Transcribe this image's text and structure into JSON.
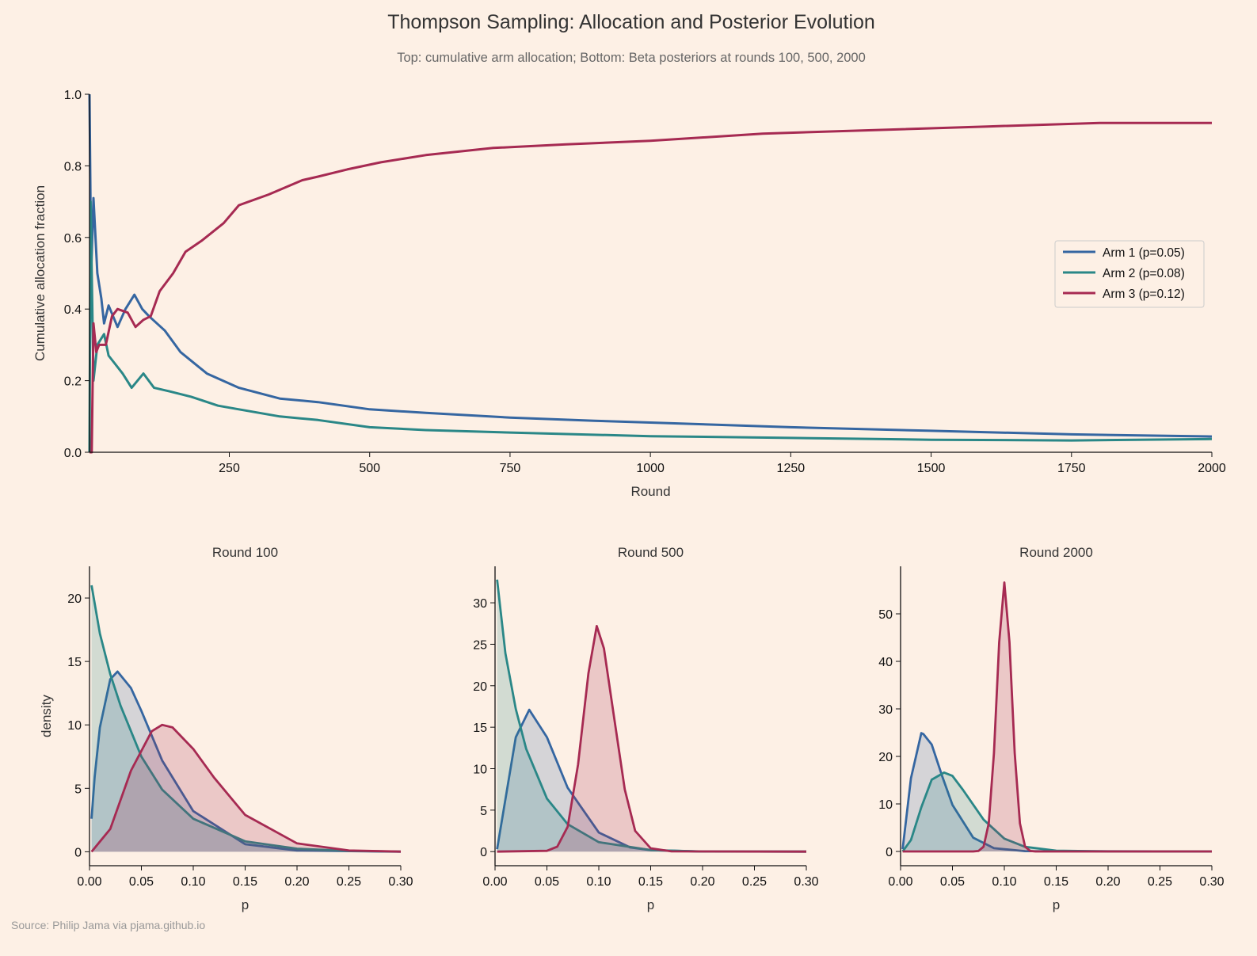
{
  "title": "Thompson Sampling: Allocation and Posterior Evolution",
  "subtitle": "Top: cumulative arm allocation; Bottom: Beta posteriors at rounds 100, 500, 2000",
  "source": "Source: Philip Jama via pjama.github.io",
  "colors": {
    "background": "#fdf0e5",
    "arm1": "#3566a1",
    "arm2": "#2a8787",
    "arm3": "#a62a52"
  },
  "chart_data": [
    {
      "type": "line",
      "xlabel": "Round",
      "ylabel": "Cumulative allocation fraction",
      "xlim": [
        1,
        2000
      ],
      "ylim": [
        0,
        1
      ],
      "xticks": [
        "250",
        "500",
        "750",
        "1000",
        "1250",
        "1500",
        "1750",
        "2000"
      ],
      "yticks": [
        "0.0",
        "0.2",
        "0.4",
        "0.6",
        "0.8",
        "1.0"
      ],
      "legend": "center-right",
      "series": [
        {
          "name": "Arm 1 (p=0.05)",
          "color": "#3566a1",
          "x": [
            1,
            4,
            8,
            15,
            22,
            27,
            35,
            51,
            65,
            81,
            95,
            107,
            135,
            163,
            210,
            267,
            340,
            408,
            500,
            600,
            750,
            900,
            1000,
            1250,
            1500,
            1750,
            2000
          ],
          "y": [
            1.0,
            0.5,
            0.71,
            0.5,
            0.43,
            0.36,
            0.41,
            0.35,
            0.4,
            0.44,
            0.4,
            0.38,
            0.34,
            0.28,
            0.22,
            0.18,
            0.15,
            0.14,
            0.12,
            0.11,
            0.097,
            0.088,
            0.083,
            0.07,
            0.06,
            0.05,
            0.044
          ]
        },
        {
          "name": "Arm 2 (p=0.08)",
          "color": "#2a8787",
          "x": [
            1,
            3,
            8,
            15,
            27,
            35,
            45,
            60,
            76,
            97,
            116,
            144,
            182,
            230,
            267,
            340,
            408,
            500,
            600,
            750,
            1000,
            1250,
            1500,
            1750,
            2000
          ],
          "y": [
            0.0,
            0.7,
            0.2,
            0.3,
            0.33,
            0.27,
            0.25,
            0.22,
            0.18,
            0.22,
            0.18,
            0.17,
            0.155,
            0.13,
            0.12,
            0.1,
            0.09,
            0.07,
            0.062,
            0.055,
            0.045,
            0.04,
            0.035,
            0.033,
            0.037
          ]
        },
        {
          "name": "Arm 3 (p=0.12)",
          "color": "#a62a52",
          "x": [
            1,
            5,
            8,
            13,
            18,
            30,
            41,
            51,
            69,
            83,
            97,
            110,
            126,
            150,
            172,
            200,
            240,
            267,
            320,
            380,
            408,
            460,
            520,
            600,
            720,
            850,
            1000,
            1200,
            1400,
            1600,
            1800,
            2000
          ],
          "y": [
            0.0,
            0.0,
            0.36,
            0.28,
            0.3,
            0.3,
            0.38,
            0.4,
            0.39,
            0.35,
            0.37,
            0.38,
            0.45,
            0.5,
            0.56,
            0.59,
            0.64,
            0.69,
            0.72,
            0.76,
            0.77,
            0.79,
            0.81,
            0.83,
            0.85,
            0.86,
            0.87,
            0.89,
            0.9,
            0.91,
            0.92,
            0.92
          ]
        }
      ]
    },
    {
      "type": "area",
      "title": "Round 100",
      "xlabel": "p",
      "ylabel": "density",
      "xlim": [
        0,
        0.3
      ],
      "ylim": [
        -1.1,
        22.5
      ],
      "xticks": [
        "0.00",
        "0.05",
        "0.10",
        "0.15",
        "0.20",
        "0.25",
        "0.30"
      ],
      "yticks": [
        "0",
        "5",
        "10",
        "15",
        "20"
      ],
      "series": [
        {
          "color": "#3566a1",
          "x": [
            0.002,
            0.005,
            0.01,
            0.02,
            0.027,
            0.04,
            0.05,
            0.07,
            0.1,
            0.15,
            0.2,
            0.3
          ],
          "y": [
            2.6,
            5.9,
            9.8,
            13.6,
            14.2,
            12.9,
            11.1,
            7.2,
            3.2,
            0.6,
            0.1,
            0
          ]
        },
        {
          "color": "#2a8787",
          "x": [
            0.002,
            0.01,
            0.02,
            0.03,
            0.05,
            0.07,
            0.1,
            0.15,
            0.2,
            0.25,
            0.3
          ],
          "y": [
            21,
            17.2,
            14.0,
            11.5,
            7.5,
            4.9,
            2.6,
            0.82,
            0.24,
            0.07,
            0.02
          ]
        },
        {
          "color": "#a62a52",
          "x": [
            0.002,
            0.02,
            0.04,
            0.06,
            0.07,
            0.08,
            0.1,
            0.12,
            0.15,
            0.2,
            0.25,
            0.3
          ],
          "y": [
            0,
            1.8,
            6.4,
            9.5,
            10.0,
            9.8,
            8.1,
            5.85,
            2.9,
            0.66,
            0.1,
            0.01
          ]
        }
      ]
    },
    {
      "type": "area",
      "title": "Round 500",
      "xlabel": "p",
      "xlim": [
        0,
        0.3
      ],
      "ylim": [
        -1.7,
        34.4
      ],
      "xticks": [
        "0.00",
        "0.05",
        "0.10",
        "0.15",
        "0.20",
        "0.25",
        "0.30"
      ],
      "yticks": [
        "0",
        "5",
        "10",
        "15",
        "20",
        "25",
        "30"
      ],
      "series": [
        {
          "color": "#3566a1",
          "x": [
            0.002,
            0.01,
            0.02,
            0.033,
            0.05,
            0.07,
            0.1,
            0.13,
            0.15,
            0.2,
            0.3
          ],
          "y": [
            0.3,
            6.3,
            13.8,
            17.1,
            13.8,
            7.7,
            2.3,
            0.52,
            0.18,
            0.01,
            0
          ]
        },
        {
          "color": "#2a8787",
          "x": [
            0.002,
            0.01,
            0.02,
            0.03,
            0.05,
            0.07,
            0.1,
            0.15,
            0.2,
            0.3
          ],
          "y": [
            32.8,
            23.9,
            17.2,
            12.4,
            6.4,
            3.3,
            1.14,
            0.18,
            0.02,
            0
          ]
        },
        {
          "color": "#a62a52",
          "x": [
            0.002,
            0.05,
            0.06,
            0.07,
            0.08,
            0.09,
            0.098,
            0.105,
            0.115,
            0.125,
            0.135,
            0.15,
            0.17,
            0.3
          ],
          "y": [
            0,
            0.1,
            0.6,
            3.0,
            10.5,
            21.5,
            27.2,
            24.5,
            16,
            7.5,
            2.5,
            0.4,
            0.03,
            0
          ]
        }
      ]
    },
    {
      "type": "area",
      "title": "Round 2000",
      "xlabel": "p",
      "xlim": [
        0,
        0.3
      ],
      "ylim": [
        -3,
        60
      ],
      "xticks": [
        "0.00",
        "0.05",
        "0.10",
        "0.15",
        "0.20",
        "0.25",
        "0.30"
      ],
      "yticks": [
        "0",
        "10",
        "20",
        "30",
        "40",
        "50"
      ],
      "series": [
        {
          "color": "#3566a1",
          "x": [
            0.002,
            0.005,
            0.01,
            0.02,
            0.022,
            0.03,
            0.04,
            0.05,
            0.07,
            0.09,
            0.12,
            0.3
          ],
          "y": [
            0.5,
            6.0,
            15.4,
            24.9,
            24.7,
            22.5,
            15.9,
            9.8,
            2.9,
            0.69,
            0.06,
            0
          ]
        },
        {
          "color": "#2a8787",
          "x": [
            0.002,
            0.01,
            0.02,
            0.03,
            0.042,
            0.05,
            0.06,
            0.08,
            0.1,
            0.12,
            0.15,
            0.2,
            0.3
          ],
          "y": [
            0,
            2.4,
            9.3,
            15.1,
            16.6,
            15.9,
            13.0,
            6.7,
            2.7,
            0.96,
            0.16,
            0.01,
            0
          ]
        },
        {
          "color": "#a62a52",
          "x": [
            0.002,
            0.07,
            0.075,
            0.08,
            0.085,
            0.09,
            0.095,
            0.1,
            0.105,
            0.11,
            0.115,
            0.12,
            0.125,
            0.13,
            0.3
          ],
          "y": [
            0,
            0,
            0.1,
            1.0,
            5.9,
            20.7,
            44,
            56.6,
            44,
            20.7,
            5.9,
            1.0,
            0.1,
            0,
            0
          ]
        }
      ]
    }
  ]
}
